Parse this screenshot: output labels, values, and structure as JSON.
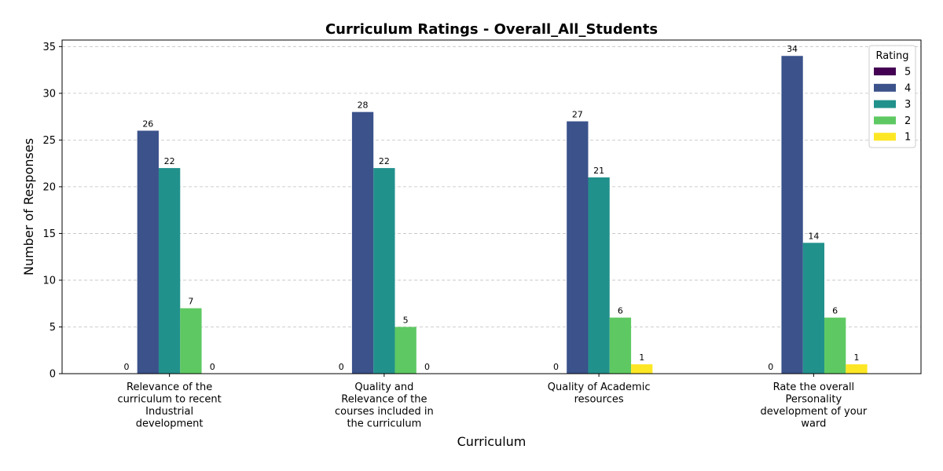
{
  "chart_data": {
    "type": "bar",
    "title": "Curriculum Ratings - Overall_All_Students",
    "xlabel": "Curriculum",
    "ylabel": "Number of Responses",
    "ylim": [
      0,
      35.7
    ],
    "yticks": [
      0,
      5,
      10,
      15,
      20,
      25,
      30,
      35
    ],
    "grid": "y-dashed",
    "legend": {
      "title": "Rating",
      "placement": "top-right"
    },
    "categories": [
      [
        "Relevance of the",
        "curriculum to recent",
        "Industrial",
        "development"
      ],
      [
        "Quality and",
        "Relevance of the",
        "courses included in",
        "the curriculum"
      ],
      [
        "Quality of Academic",
        "resources"
      ],
      [
        "Rate the overall",
        "Personality",
        "development of your",
        "ward"
      ]
    ],
    "series": [
      {
        "name": "5",
        "color": "#440154",
        "values": [
          0,
          0,
          0,
          0
        ]
      },
      {
        "name": "4",
        "color": "#3b528b",
        "values": [
          26,
          28,
          27,
          34
        ]
      },
      {
        "name": "3",
        "color": "#21918c",
        "values": [
          22,
          22,
          21,
          14
        ]
      },
      {
        "name": "2",
        "color": "#5ec962",
        "values": [
          7,
          5,
          6,
          6
        ]
      },
      {
        "name": "1",
        "color": "#fde725",
        "values": [
          0,
          0,
          1,
          1
        ]
      }
    ]
  }
}
